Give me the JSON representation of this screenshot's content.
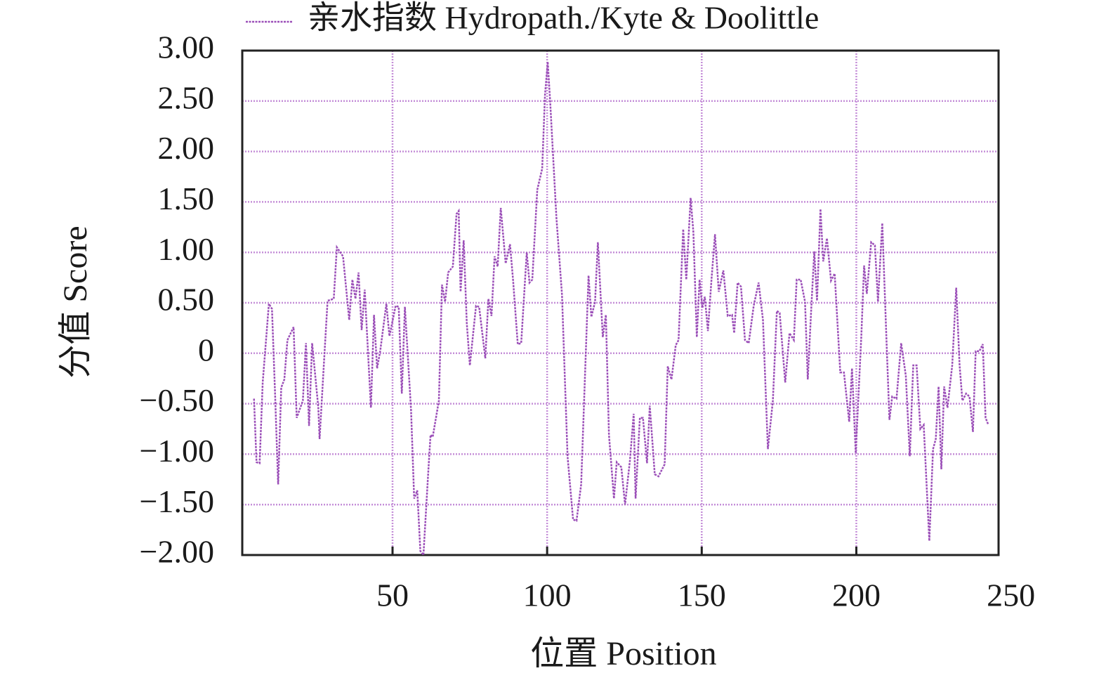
{
  "chart_data": {
    "type": "line",
    "x_label": "位置 Position",
    "y_label": "分值 Score",
    "xlim": [
      1.4,
      246
    ],
    "ylim": [
      -2,
      3
    ],
    "xticks": [
      50,
      100,
      150,
      200,
      250
    ],
    "yticks": [
      {
        "value": 3,
        "label": "3.00"
      },
      {
        "value": 2.5,
        "label": "2.50"
      },
      {
        "value": 2,
        "label": "2.00"
      },
      {
        "value": 1.5,
        "label": "1.50"
      },
      {
        "value": 1,
        "label": "1.00"
      },
      {
        "value": 0.5,
        "label": "0.50"
      },
      0,
      {
        "value": -0.5,
        "label": "−0.50"
      },
      {
        "value": -1,
        "label": "−1.00"
      },
      {
        "value": -1.5,
        "label": "−1.50"
      },
      {
        "value": -2,
        "label": "−2.00"
      }
    ],
    "grid": true,
    "legend": "top",
    "series": [
      {
        "name": "亲水指数 Hydropath./Kyte & Doolittle",
        "color": "#9b4fb8",
        "x": [
          5.2,
          6,
          7,
          8,
          10,
          11,
          12,
          13,
          14,
          15,
          16,
          18,
          19,
          21,
          22,
          23,
          24,
          26,
          26.4,
          28,
          29,
          31,
          32,
          34,
          36,
          37,
          38,
          39,
          40,
          41,
          43,
          44,
          45,
          46,
          48,
          49,
          51,
          52,
          53,
          54,
          56,
          57,
          58,
          59,
          60,
          61.6,
          62.3,
          63,
          65,
          66,
          67,
          68,
          69.5,
          70.7,
          71.4,
          72,
          73,
          74,
          75,
          77,
          78,
          80,
          81,
          82,
          83,
          84,
          85,
          86.6,
          88,
          89,
          90.5,
          91.6,
          93.4,
          94.3,
          95.2,
          96.8,
          98.4,
          99.3,
          100.2,
          101,
          103,
          104.8,
          106.6,
          108.4,
          109.5,
          111,
          113.4,
          114.3,
          115.5,
          116.4,
          118,
          119,
          120,
          121.6,
          122.5,
          124,
          125.2,
          126.8,
          128,
          128.6,
          130,
          131,
          132.3,
          133.2,
          134.8,
          136,
          138,
          139,
          140.2,
          141.6,
          142.5,
          144,
          145,
          146.4,
          147.3,
          148.4,
          149.3,
          150.2,
          151,
          152,
          153.2,
          154.3,
          155.5,
          157,
          158.4,
          159.8,
          160.5,
          161.6,
          162.7,
          164,
          165.2,
          166.8,
          168.4,
          169.8,
          171.4,
          173,
          174.3,
          175.2,
          177,
          178.4,
          179.8,
          180.7,
          182,
          183.4,
          184.3,
          185.5,
          186.4,
          187.3,
          188.4,
          189.3,
          190.5,
          191.8,
          193,
          194.8,
          196,
          197.7,
          198.6,
          199.8,
          201.6,
          202.5,
          203.4,
          204.8,
          206,
          207,
          208.4,
          209.8,
          210.7,
          211.6,
          213,
          214.5,
          216,
          217.3,
          218.4,
          219.5,
          220.7,
          221.8,
          223.6,
          224.8,
          225.7,
          226.6,
          227.5,
          228.4,
          229.5,
          231,
          232.3,
          233.4,
          234.3,
          235.5,
          236.6,
          237.7,
          238.6,
          239.8,
          240.9,
          241.8,
          242.7
        ],
        "values": [
          -0.45,
          -1.08,
          -1.09,
          -0.29,
          0.49,
          0.44,
          -0.4,
          -1.3,
          -0.34,
          -0.26,
          0.13,
          0.26,
          -0.64,
          -0.47,
          0.1,
          -0.72,
          0.1,
          -0.54,
          -0.85,
          0,
          0.52,
          0.54,
          1.05,
          0.96,
          0.33,
          0.73,
          0.54,
          0.8,
          0.23,
          0.63,
          -0.54,
          0.38,
          -0.15,
          0.02,
          0.49,
          0.17,
          0.47,
          0.46,
          -0.4,
          0.46,
          -0.57,
          -1.44,
          -1.36,
          -1.96,
          -2,
          -1.15,
          -0.81,
          -0.83,
          -0.47,
          0.68,
          0.51,
          0.8,
          0.86,
          1.38,
          1.41,
          0.61,
          1.12,
          0.3,
          -0.12,
          0.47,
          0.46,
          -0.05,
          0.54,
          0.37,
          0.96,
          0.86,
          1.44,
          0.89,
          1.08,
          0.72,
          0.09,
          0.1,
          1,
          0.7,
          0.73,
          1.62,
          1.83,
          2.56,
          2.89,
          2.49,
          1.34,
          0.58,
          -1.02,
          -1.65,
          -1.66,
          -1.3,
          0.77,
          0.36,
          0.51,
          1.1,
          0.16,
          0.38,
          -0.81,
          -1.44,
          -1.08,
          -1.13,
          -1.5,
          -1.06,
          -0.6,
          -1.44,
          -0.64,
          -0.64,
          -1.09,
          -0.52,
          -1.2,
          -1.22,
          -1.1,
          -0.13,
          -0.26,
          0.08,
          0.13,
          1.23,
          0.73,
          1.54,
          1.2,
          0.16,
          0.73,
          0.45,
          0.56,
          0.22,
          0.75,
          1.18,
          0.61,
          0.82,
          0.37,
          0.38,
          0.2,
          0.7,
          0.66,
          0.13,
          0.1,
          0.47,
          0.7,
          0.33,
          -0.95,
          -0.47,
          0.42,
          0.4,
          -0.29,
          0.2,
          0.13,
          0.73,
          0.73,
          0.51,
          -0.26,
          0.49,
          1.01,
          0.52,
          1.43,
          0.91,
          1.14,
          0.72,
          0.79,
          -0.19,
          -0.19,
          -0.68,
          -0.15,
          -0.99,
          0.16,
          0.87,
          0.59,
          1.1,
          1.07,
          0.51,
          1.29,
          0.09,
          -0.66,
          -0.43,
          -0.45,
          0.1,
          -0.22,
          -1.02,
          -0.12,
          -0.12,
          -0.75,
          -0.71,
          -1.86,
          -0.95,
          -0.85,
          -0.33,
          -1.15,
          -0.33,
          -0.54,
          -0.12,
          0.65,
          -0.12,
          -0.47,
          -0.4,
          -0.43,
          -0.78,
          0.02,
          0.02,
          0.09,
          -0.64,
          -0.71
        ]
      }
    ]
  }
}
